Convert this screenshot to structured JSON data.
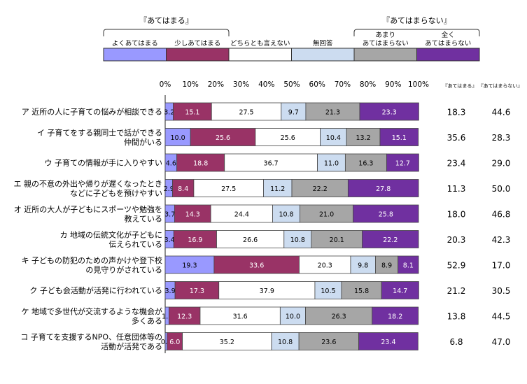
{
  "chart_data": {
    "type": "bar",
    "stacked": true,
    "orientation": "horizontal",
    "xlim": [
      0,
      100
    ],
    "ticks": [
      "0%",
      "10%",
      "20%",
      "30%",
      "40%",
      "50%",
      "60%",
      "70%",
      "80%",
      "90%",
      "100%"
    ],
    "group_labels": {
      "applies": "『あてはまる』",
      "not_applies": "『あてはまらない』"
    },
    "summary_headers": [
      "『あてはまる』",
      "『あてはまらない』"
    ],
    "legend": [
      {
        "label": "よくあてはまる",
        "color": "#9999ff"
      },
      {
        "label": "少しあてはまる",
        "color": "#993366"
      },
      {
        "label": "どちらとも言えない",
        "color": "#ffffff"
      },
      {
        "label": "無回答",
        "color": "#ccdcf0"
      },
      {
        "label": "あまり\nあてはまらない",
        "color": "#a6a6a6"
      },
      {
        "label": "全く\nあてはまらない",
        "color": "#7030a0"
      }
    ],
    "label_colors": [
      "#000000",
      "#ffffff",
      "#000000",
      "#000000",
      "#000000",
      "#ffffff"
    ],
    "series": [
      {
        "name": "よくあてはまる",
        "values": [
          3.2,
          10.0,
          4.6,
          2.9,
          3.7,
          3.4,
          19.3,
          3.9,
          1.5,
          0.8
        ]
      },
      {
        "name": "少しあてはまる",
        "values": [
          15.1,
          25.6,
          18.8,
          8.4,
          14.3,
          16.9,
          33.6,
          17.3,
          12.3,
          6.0
        ]
      },
      {
        "name": "どちらとも言えない",
        "values": [
          27.5,
          25.6,
          36.7,
          27.5,
          24.4,
          26.6,
          20.3,
          37.9,
          31.6,
          35.2
        ]
      },
      {
        "name": "無回答",
        "values": [
          9.7,
          10.4,
          11.0,
          11.2,
          10.8,
          10.8,
          9.8,
          10.5,
          10.0,
          10.8
        ]
      },
      {
        "name": "あまりあてはまらない",
        "values": [
          21.3,
          13.2,
          16.3,
          22.2,
          21.0,
          20.1,
          8.9,
          15.8,
          26.3,
          23.6
        ]
      },
      {
        "name": "全くあてはまらない",
        "values": [
          23.3,
          15.1,
          12.7,
          27.8,
          25.8,
          22.2,
          8.1,
          14.7,
          18.2,
          23.4
        ]
      }
    ],
    "categories": [
      [
        "ア 近所の人に子育ての悩みが相談できる"
      ],
      [
        "イ 子育てをする親同士で話ができる",
        "仲間がいる"
      ],
      [
        "ウ 子育ての情報が手に入りやすい"
      ],
      [
        "エ 親の不意の外出や帰りが遅くなったとき",
        "などに子どもを預けやすい"
      ],
      [
        "オ 近所の大人が子どもにスポーツや勉強を",
        "教えている"
      ],
      [
        "カ 地域の伝統文化が子どもに",
        "伝えられている"
      ],
      [
        "キ 子どもの防犯のための声かけや登下校",
        "の見守りがされている"
      ],
      [
        "ク 子ども会活動が活発に行われている"
      ],
      [
        "ケ 地域で多世代が交流するような機会が",
        "多くある"
      ],
      [
        "コ 子育てを支援するNPO、任意団体等の",
        "活動が活発である"
      ]
    ],
    "applies_totals": [
      "18.3",
      "35.6",
      "23.4",
      "11.3",
      "18.0",
      "20.3",
      "52.9",
      "21.2",
      "13.8",
      "6.8"
    ],
    "not_applies_totals": [
      "44.6",
      "28.3",
      "29.0",
      "50.0",
      "46.8",
      "42.3",
      "17.0",
      "30.5",
      "44.5",
      "47.0"
    ]
  }
}
